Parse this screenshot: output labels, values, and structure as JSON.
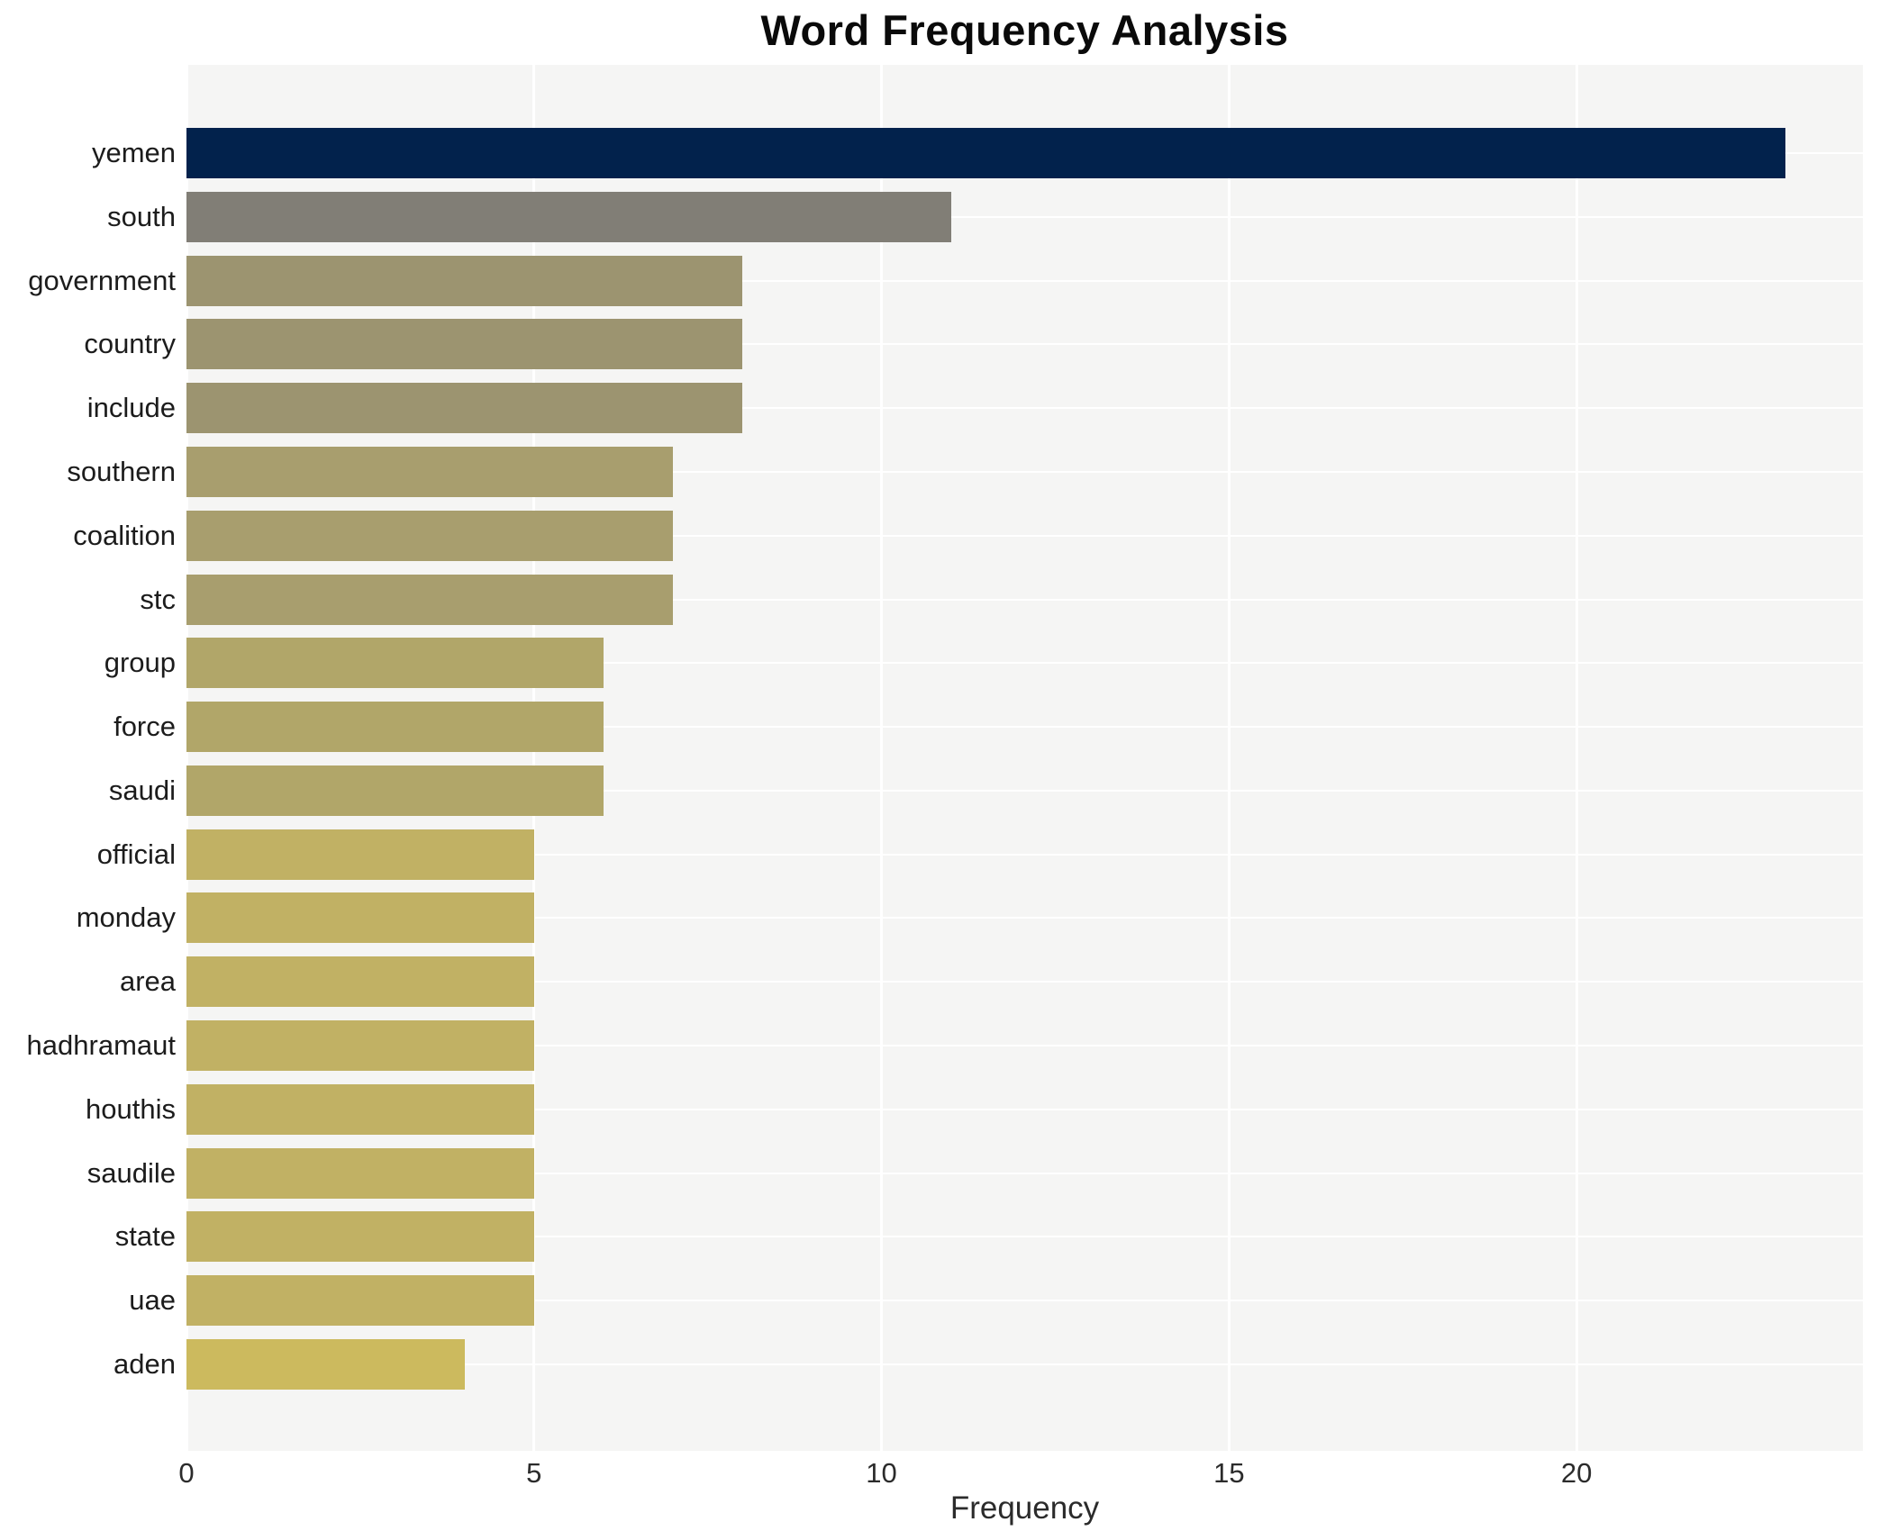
{
  "chart_data": {
    "type": "bar",
    "orientation": "horizontal",
    "title": "Word Frequency Analysis",
    "xlabel": "Frequency",
    "ylabel": "",
    "categories": [
      "yemen",
      "south",
      "government",
      "country",
      "include",
      "southern",
      "coalition",
      "stc",
      "group",
      "force",
      "saudi",
      "official",
      "monday",
      "area",
      "hadhramaut",
      "houthis",
      "saudile",
      "state",
      "uae",
      "aden"
    ],
    "values": [
      23,
      11,
      8,
      8,
      8,
      7,
      7,
      7,
      6,
      6,
      6,
      5,
      5,
      5,
      5,
      5,
      5,
      5,
      5,
      4
    ],
    "bar_colors": [
      "#02224c",
      "#817e76",
      "#9c9470",
      "#9c9470",
      "#9c9470",
      "#a89e6e",
      "#a89e6e",
      "#a89e6e",
      "#b1a669",
      "#b1a669",
      "#b1a669",
      "#c1b164",
      "#c1b164",
      "#c1b164",
      "#c1b164",
      "#c1b164",
      "#c1b164",
      "#c1b164",
      "#c1b164",
      "#ccba5e"
    ],
    "x_ticks": [
      0,
      5,
      10,
      15,
      20
    ],
    "xlim": [
      0,
      24.12
    ],
    "grid": true,
    "legend": "none",
    "plot_bg_color": "#f5f5f4",
    "grid_color": "#ffffff",
    "page_bg_color": "#ffffff"
  }
}
